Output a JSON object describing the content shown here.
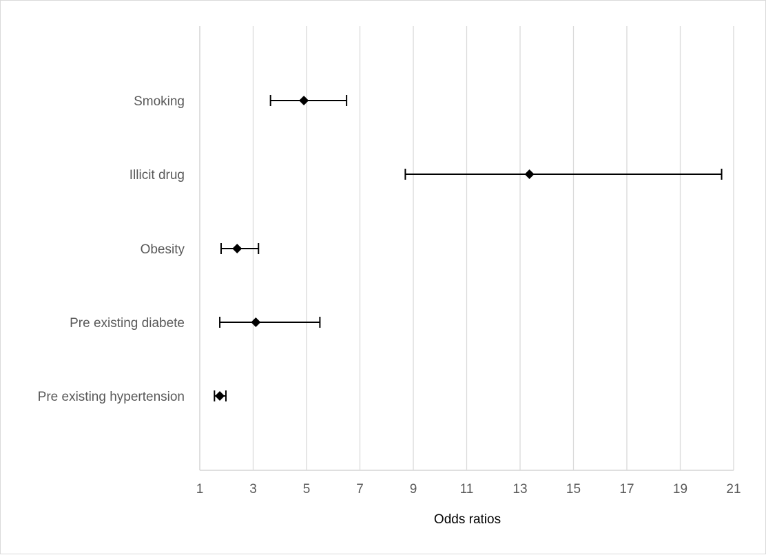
{
  "chart_data": {
    "type": "scatter",
    "subtype": "forest-plot",
    "title": "",
    "xlabel": "Odds ratios",
    "ylabel": "",
    "xlim": [
      1,
      21
    ],
    "xticks": [
      1,
      3,
      5,
      7,
      9,
      11,
      13,
      15,
      17,
      19,
      21
    ],
    "xtick_labels": [
      "1",
      "3",
      "5",
      "7",
      "9",
      "11",
      "13",
      "15",
      "17",
      "19",
      "21"
    ],
    "grid": "vertical",
    "legend": "none",
    "categories": [
      "Smoking",
      "Illicit drug",
      "Obesity",
      "Pre existing diabete",
      "Pre existing hypertension"
    ],
    "values": [
      4.9,
      13.35,
      2.4,
      3.1,
      1.75
    ],
    "ci_lower": [
      3.65,
      8.7,
      1.8,
      1.75,
      1.55
    ],
    "ci_upper": [
      6.5,
      20.55,
      3.2,
      5.5,
      1.98
    ],
    "colors": {
      "marker": "#000000",
      "grid": "#d9d9d9",
      "label": "#595959"
    }
  }
}
